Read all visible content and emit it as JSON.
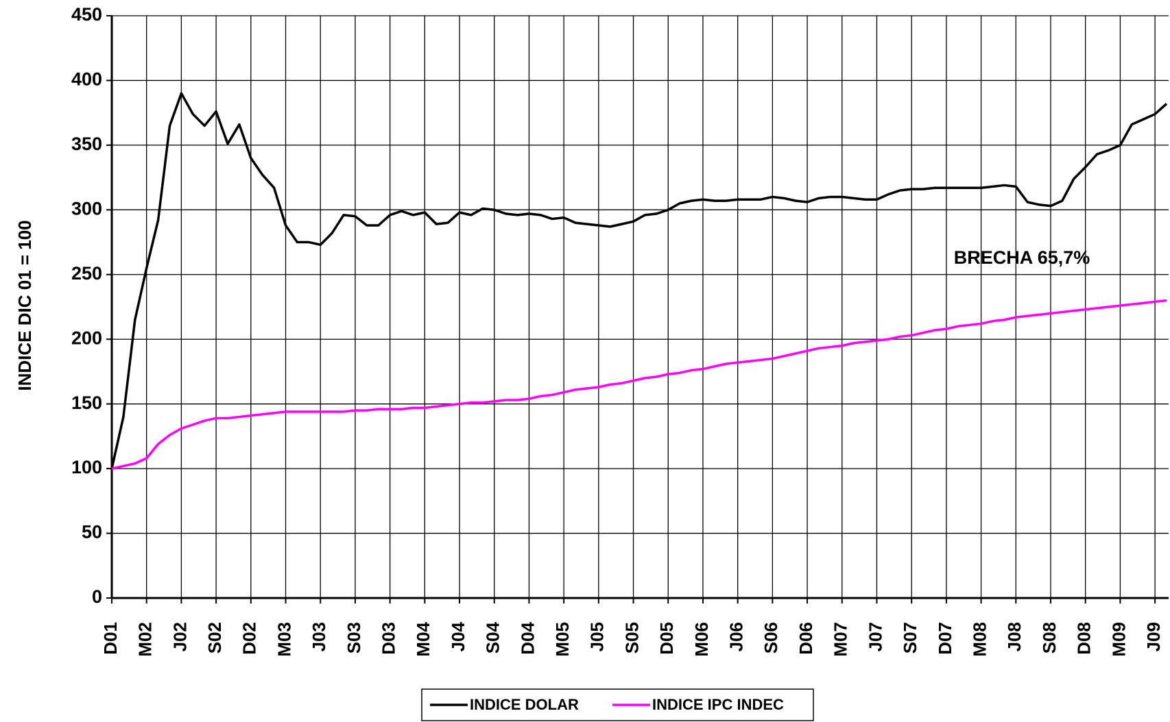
{
  "chart_data": {
    "type": "line",
    "y_label": "INDICE DIC 01 = 100",
    "annotation": "BRECHA 65,7%",
    "categories": [
      "D01",
      null,
      null,
      "M02",
      null,
      null,
      "J02",
      null,
      null,
      "S02",
      null,
      null,
      "D02",
      null,
      null,
      "M03",
      null,
      null,
      "J03",
      null,
      null,
      "S03",
      null,
      null,
      "D03",
      null,
      null,
      "M04",
      null,
      null,
      "J04",
      null,
      null,
      "S04",
      null,
      null,
      "D04",
      null,
      null,
      "M05",
      null,
      null,
      "J05",
      null,
      null,
      "S05",
      null,
      null,
      "D05",
      null,
      null,
      "M06",
      null,
      null,
      "J06",
      null,
      null,
      "S06",
      null,
      null,
      "D06",
      null,
      null,
      "M07",
      null,
      null,
      "J07",
      null,
      null,
      "S07",
      null,
      null,
      "D07",
      null,
      null,
      "M08",
      null,
      null,
      "J08",
      null,
      null,
      "S08",
      null,
      null,
      "D08",
      null,
      null,
      "M09",
      null,
      null,
      "J09",
      null
    ],
    "series": [
      {
        "name": "INDICE DOLAR",
        "color": "#000000",
        "values": [
          100,
          140,
          215,
          255,
          292,
          365,
          390,
          374,
          365,
          376,
          351,
          366,
          340,
          327,
          317,
          288,
          275,
          275,
          273,
          282,
          296,
          295,
          288,
          288,
          296,
          299,
          296,
          298,
          289,
          290,
          298,
          296,
          301,
          300,
          297,
          296,
          297,
          296,
          293,
          294,
          290,
          289,
          288,
          287,
          289,
          291,
          296,
          297,
          300,
          305,
          307,
          308,
          307,
          307,
          308,
          308,
          308,
          310,
          309,
          307,
          306,
          309,
          310,
          310,
          309,
          308,
          308,
          312,
          315,
          316,
          316,
          317,
          317,
          317,
          317,
          317,
          318,
          319,
          318,
          306,
          304,
          303,
          307,
          324,
          333,
          343,
          346,
          350,
          366,
          370,
          374,
          382
        ]
      },
      {
        "name": "INDICE IPC INDEC",
        "color": "#ff00ff",
        "values": [
          100,
          102,
          104,
          108,
          119,
          126,
          131,
          134,
          137,
          139,
          139,
          140,
          141,
          142,
          143,
          144,
          144,
          144,
          144,
          144,
          144,
          145,
          145,
          146,
          146,
          146,
          147,
          147,
          148,
          149,
          150,
          151,
          151,
          152,
          153,
          153,
          154,
          156,
          157,
          159,
          161,
          162,
          163,
          165,
          166,
          168,
          170,
          171,
          173,
          174,
          176,
          177,
          179,
          181,
          182,
          183,
          184,
          185,
          187,
          189,
          191,
          193,
          194,
          195,
          197,
          198,
          199,
          200,
          202,
          203,
          205,
          207,
          208,
          210,
          211,
          212,
          214,
          215,
          217,
          218,
          219,
          220,
          221,
          222,
          223,
          224,
          225,
          226,
          227,
          228,
          229,
          230
        ]
      }
    ],
    "ylim": [
      0,
      450
    ],
    "yticks": [
      0,
      50,
      100,
      150,
      200,
      250,
      300,
      350,
      400,
      450
    ],
    "grid": true
  }
}
